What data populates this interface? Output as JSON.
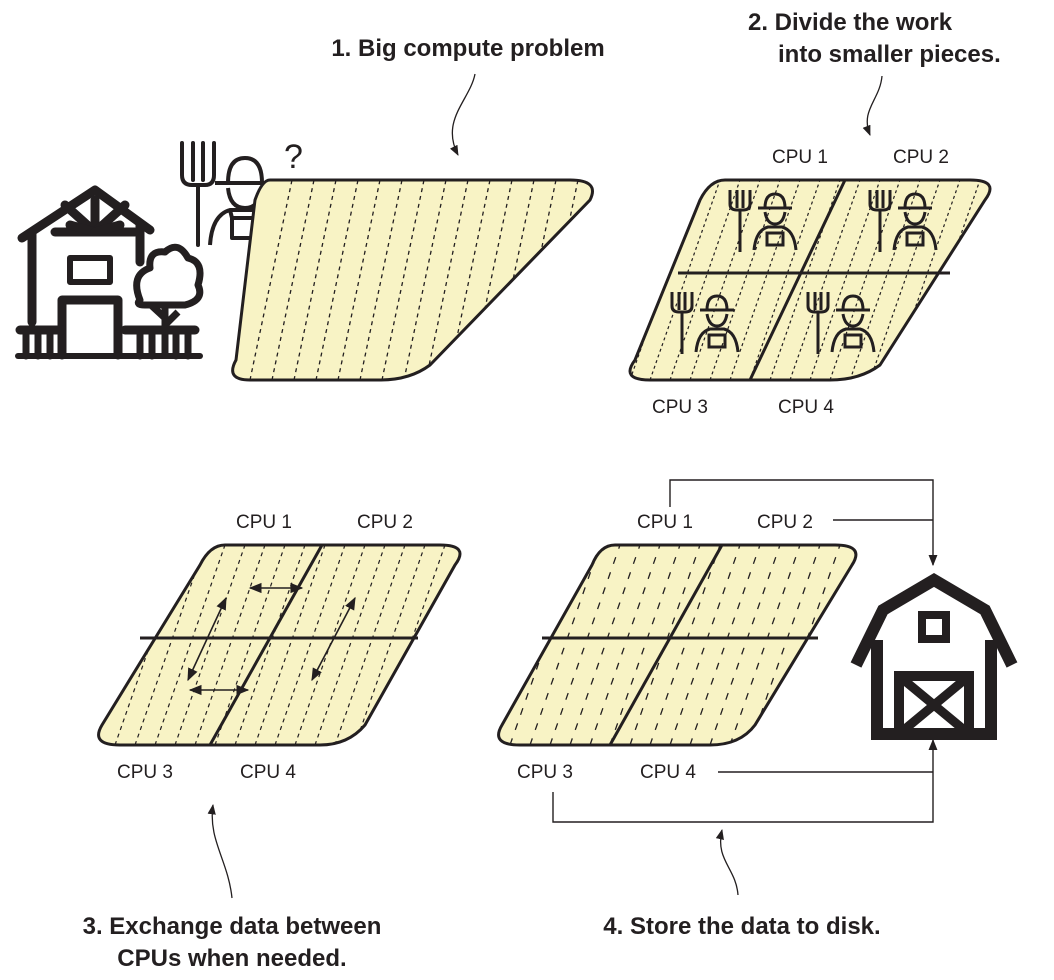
{
  "colors": {
    "field_fill": "#f8f3c5",
    "ink": "#231f20",
    "background": "#ffffff"
  },
  "icons": {
    "farmhouse": "farmhouse-icon",
    "tree": "tree-icon",
    "farmer": "farmer-icon",
    "pitchfork": "pitchfork-icon",
    "barn": "barn-icon"
  },
  "panel1": {
    "step_label": "1. Big compute problem",
    "question_mark": "?"
  },
  "panel2": {
    "step_label_line1": "2. Divide the work",
    "step_label_line2": "into smaller pieces.",
    "cpu_labels": [
      "CPU 1",
      "CPU 2",
      "CPU 3",
      "CPU 4"
    ]
  },
  "panel3": {
    "step_label_line1": "3. Exchange data between",
    "step_label_line2": "CPUs when needed.",
    "cpu_labels": [
      "CPU 1",
      "CPU 2",
      "CPU 3",
      "CPU 4"
    ]
  },
  "panel4": {
    "step_label": "4. Store the data to disk.",
    "cpu_labels": [
      "CPU 1",
      "CPU 2",
      "CPU 3",
      "CPU 4"
    ]
  }
}
